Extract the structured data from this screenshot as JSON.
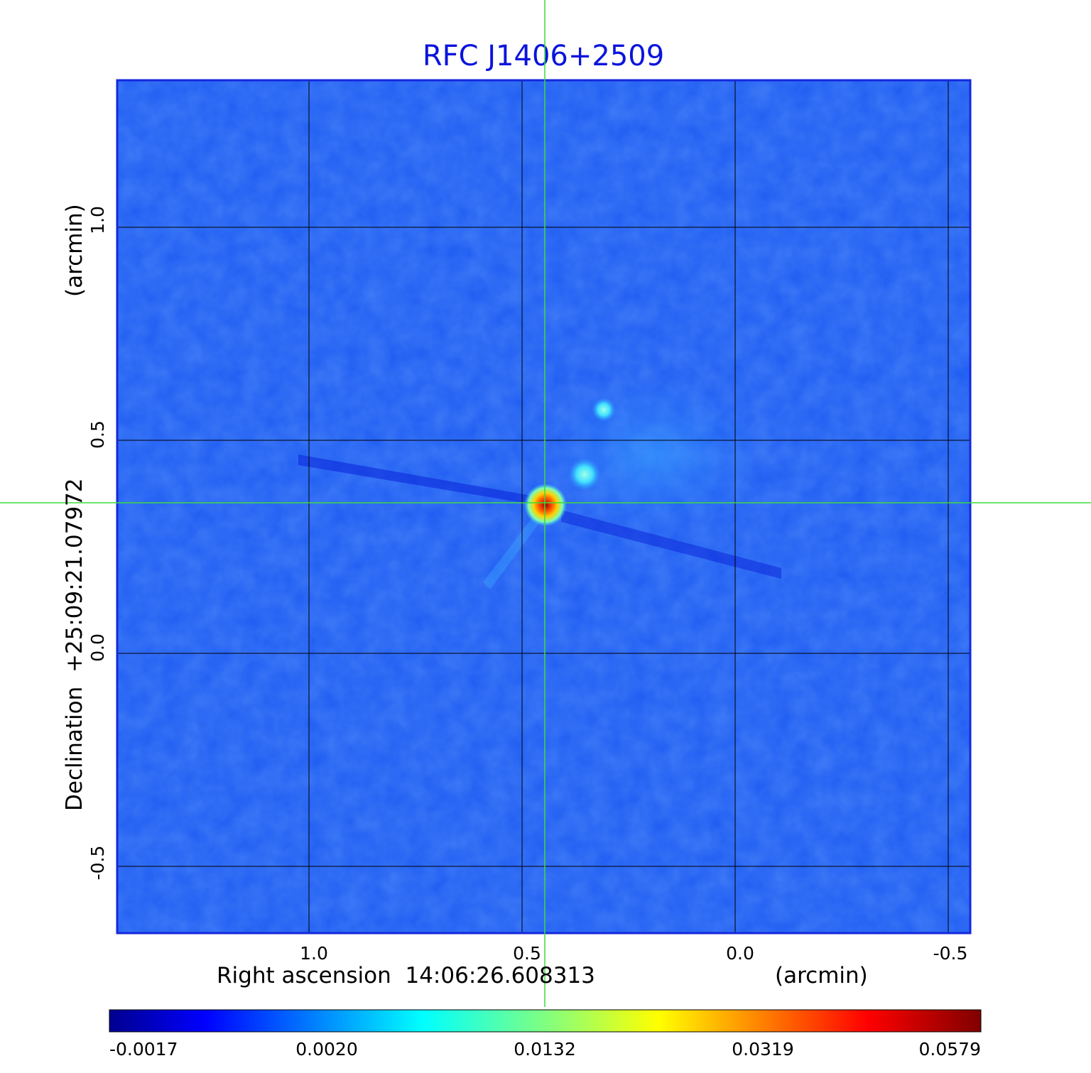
{
  "title": "RFC J1406+2509",
  "title_color": "#0a14dc",
  "image": {
    "colormap": "jet",
    "frame_color": "#1428dc",
    "background_color": "#1e5cf2",
    "grid_color": "#000000",
    "crosshair_color": "#3cdc3c"
  },
  "x_axis": {
    "label": "Right ascension  14:06:26.608313",
    "unit": "(arcmin)",
    "ticks": [
      "1.0",
      "0.5",
      "0.0",
      "-0.5"
    ]
  },
  "y_axis": {
    "label": "Declination  +25:09:21.07972",
    "unit": "(arcmin)",
    "ticks": [
      "1.0",
      "0.5",
      "0.0",
      "-0.5"
    ]
  },
  "colorbar": {
    "ticks": [
      "-0.0017",
      "0.0020",
      "0.0132",
      "0.0319",
      "0.0579"
    ]
  }
}
